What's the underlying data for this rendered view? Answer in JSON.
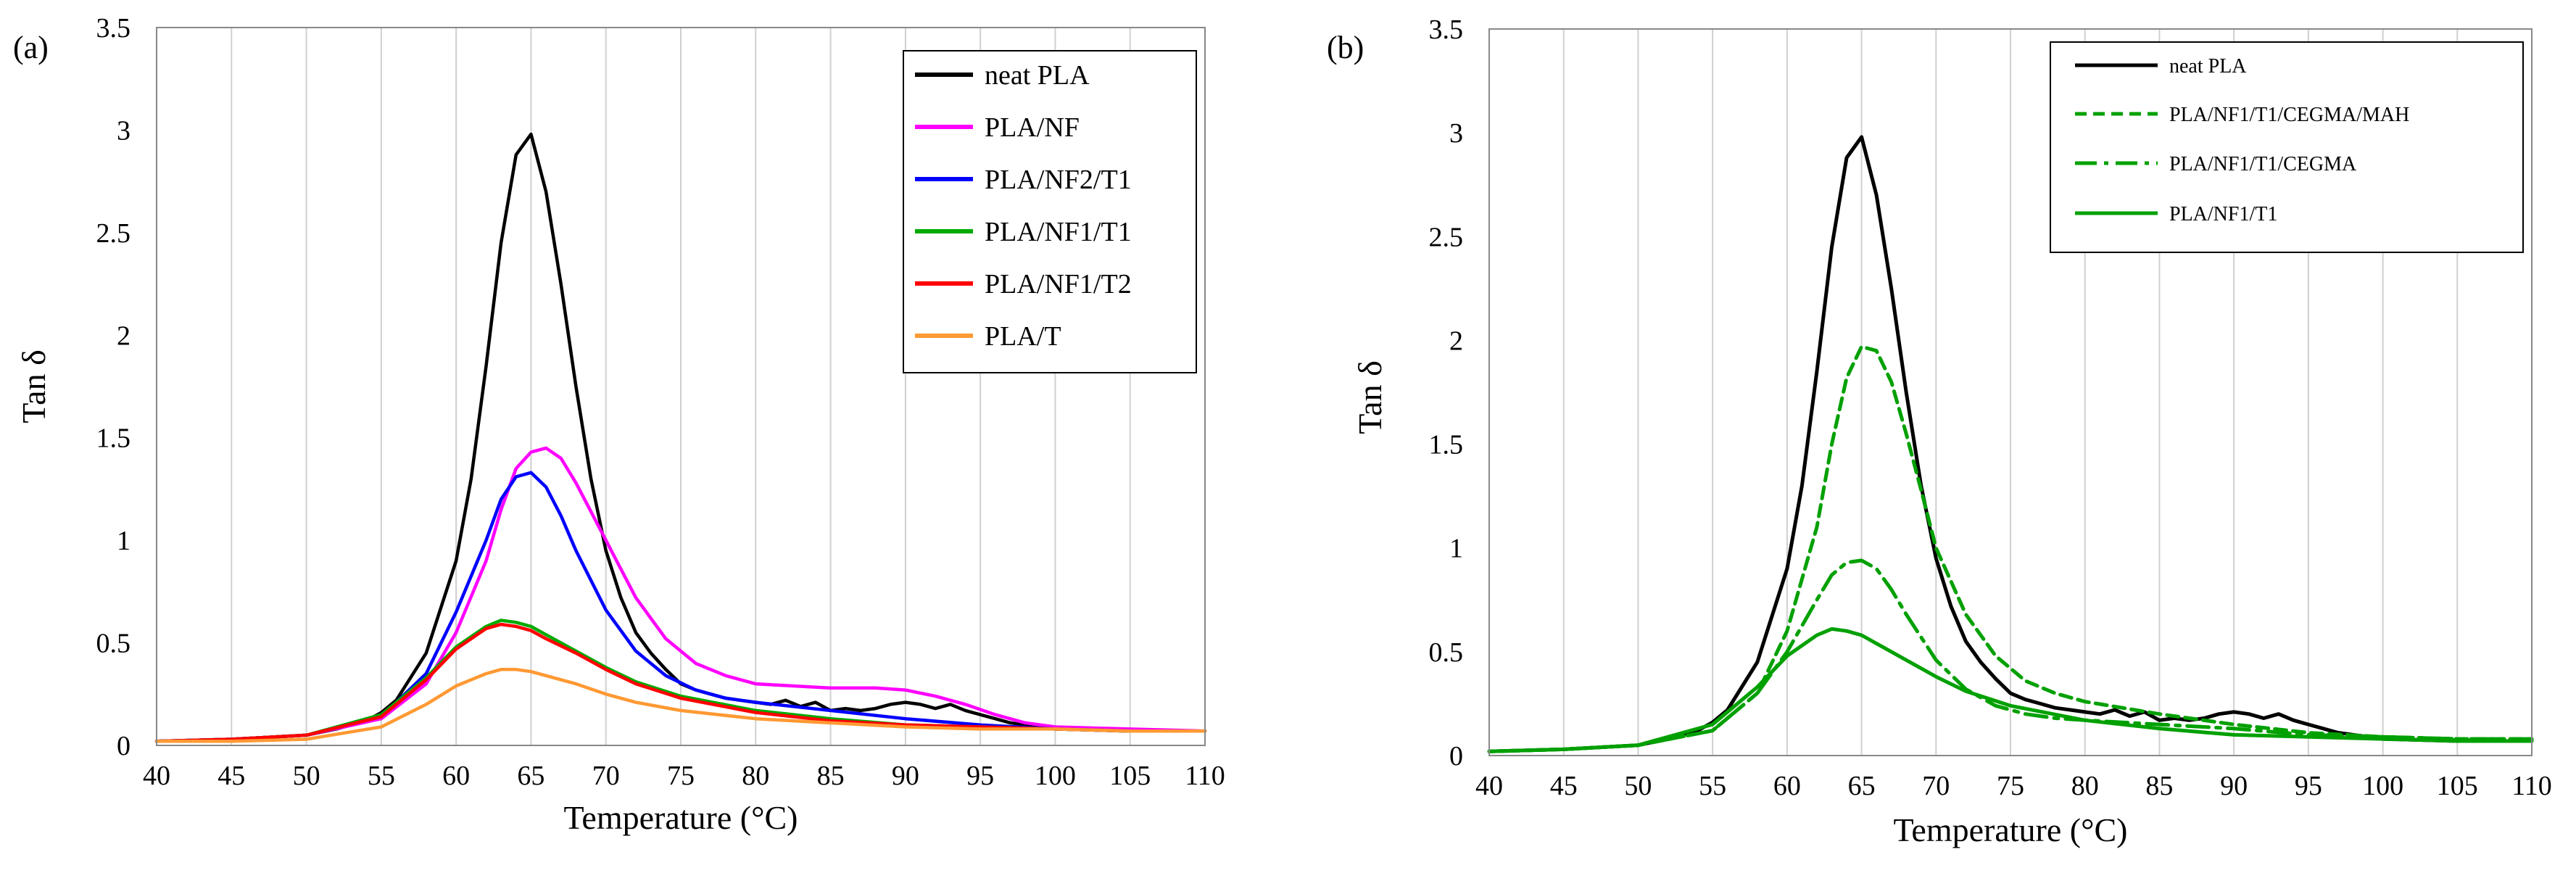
{
  "chart_data": [
    {
      "type": "line",
      "panel_label": "(a)",
      "xlabel": "Temperature (°C)",
      "ylabel": "Tan δ",
      "xlim": [
        40,
        110
      ],
      "ylim": [
        0,
        3.5
      ],
      "xticks": [
        "40",
        "45",
        "50",
        "55",
        "60",
        "65",
        "70",
        "75",
        "80",
        "85",
        "90",
        "95",
        "100",
        "105",
        "110"
      ],
      "yticks": [
        "0",
        "0.5",
        "1",
        "1.5",
        "2",
        "2.5",
        "3",
        "3.5"
      ],
      "grid": "vertical",
      "legend_position": "top-right",
      "series": [
        {
          "name": "neat PLA",
          "color": "#000000",
          "dash": "solid",
          "x": [
            40,
            45,
            50,
            52,
            54,
            55,
            56,
            58,
            60,
            61,
            62,
            63,
            64,
            65,
            66,
            67,
            68,
            69,
            70,
            71,
            72,
            73,
            74,
            75,
            76,
            77,
            78,
            79,
            80,
            81,
            82,
            83,
            84,
            85,
            86,
            87,
            88,
            89,
            90,
            91,
            92,
            93,
            94,
            95,
            96,
            97,
            98,
            99,
            100,
            105,
            110
          ],
          "y": [
            0.02,
            0.03,
            0.05,
            0.08,
            0.12,
            0.16,
            0.22,
            0.45,
            0.9,
            1.3,
            1.85,
            2.45,
            2.88,
            2.98,
            2.7,
            2.25,
            1.75,
            1.3,
            0.95,
            0.72,
            0.55,
            0.45,
            0.37,
            0.3,
            0.27,
            0.25,
            0.23,
            0.22,
            0.21,
            0.2,
            0.22,
            0.19,
            0.21,
            0.17,
            0.18,
            0.17,
            0.18,
            0.2,
            0.21,
            0.2,
            0.18,
            0.2,
            0.17,
            0.15,
            0.13,
            0.11,
            0.1,
            0.09,
            0.08,
            0.07,
            0.07
          ]
        },
        {
          "name": "PLA/NF",
          "color": "#ff00ff",
          "dash": "solid",
          "x": [
            40,
            45,
            50,
            55,
            58,
            60,
            62,
            63,
            64,
            65,
            66,
            67,
            68,
            70,
            72,
            74,
            76,
            78,
            80,
            85,
            88,
            90,
            92,
            94,
            96,
            98,
            100,
            105,
            110
          ],
          "y": [
            0.02,
            0.03,
            0.05,
            0.13,
            0.3,
            0.55,
            0.9,
            1.15,
            1.35,
            1.43,
            1.45,
            1.4,
            1.28,
            1.0,
            0.72,
            0.52,
            0.4,
            0.34,
            0.3,
            0.28,
            0.28,
            0.27,
            0.24,
            0.2,
            0.15,
            0.11,
            0.09,
            0.08,
            0.07
          ]
        },
        {
          "name": "PLA/NF2/T1",
          "color": "#0000ff",
          "dash": "solid",
          "x": [
            40,
            45,
            50,
            55,
            58,
            60,
            62,
            63,
            64,
            65,
            66,
            67,
            68,
            70,
            72,
            74,
            76,
            78,
            80,
            85,
            90,
            95,
            100,
            105,
            110
          ],
          "y": [
            0.02,
            0.03,
            0.05,
            0.14,
            0.35,
            0.65,
            1.0,
            1.2,
            1.31,
            1.33,
            1.26,
            1.12,
            0.95,
            0.66,
            0.46,
            0.34,
            0.27,
            0.23,
            0.21,
            0.17,
            0.13,
            0.1,
            0.08,
            0.07,
            0.07
          ]
        },
        {
          "name": "PLA/NF1/T1",
          "color": "#00aa00",
          "dash": "solid",
          "x": [
            40,
            45,
            50,
            55,
            58,
            60,
            62,
            63,
            64,
            65,
            66,
            68,
            70,
            72,
            75,
            80,
            85,
            90,
            95,
            100,
            105,
            110
          ],
          "y": [
            0.02,
            0.03,
            0.05,
            0.15,
            0.33,
            0.48,
            0.58,
            0.61,
            0.6,
            0.58,
            0.54,
            0.46,
            0.38,
            0.31,
            0.24,
            0.17,
            0.13,
            0.1,
            0.09,
            0.08,
            0.07,
            0.07
          ]
        },
        {
          "name": "PLA/NF1/T2",
          "color": "#ff0000",
          "dash": "solid",
          "x": [
            40,
            45,
            50,
            55,
            58,
            60,
            62,
            63,
            64,
            65,
            66,
            68,
            70,
            72,
            75,
            80,
            85,
            90,
            95,
            100,
            105,
            110
          ],
          "y": [
            0.02,
            0.03,
            0.05,
            0.14,
            0.32,
            0.47,
            0.57,
            0.59,
            0.58,
            0.56,
            0.52,
            0.45,
            0.37,
            0.3,
            0.23,
            0.16,
            0.12,
            0.1,
            0.09,
            0.08,
            0.07,
            0.07
          ]
        },
        {
          "name": "PLA/T",
          "color": "#ff9933",
          "dash": "solid",
          "x": [
            40,
            45,
            50,
            55,
            58,
            60,
            62,
            63,
            64,
            65,
            66,
            68,
            70,
            72,
            75,
            80,
            85,
            90,
            95,
            100,
            105,
            110
          ],
          "y": [
            0.02,
            0.02,
            0.03,
            0.09,
            0.2,
            0.29,
            0.35,
            0.37,
            0.37,
            0.36,
            0.34,
            0.3,
            0.25,
            0.21,
            0.17,
            0.13,
            0.11,
            0.09,
            0.08,
            0.08,
            0.07,
            0.07
          ]
        }
      ]
    },
    {
      "type": "line",
      "panel_label": "(b)",
      "xlabel": "Temperature (°C)",
      "ylabel": "Tan δ",
      "xlim": [
        40,
        110
      ],
      "ylim": [
        0,
        3.5
      ],
      "xticks": [
        "40",
        "45",
        "50",
        "55",
        "60",
        "65",
        "70",
        "75",
        "80",
        "85",
        "90",
        "95",
        "100",
        "105",
        "110"
      ],
      "yticks": [
        "0",
        "0.5",
        "1",
        "1.5",
        "2",
        "2.5",
        "3",
        "3.5"
      ],
      "grid": "vertical",
      "legend_position": "top-right",
      "series": [
        {
          "name": "neat PLA",
          "color": "#000000",
          "dash": "solid",
          "x": [
            40,
            45,
            50,
            52,
            54,
            55,
            56,
            58,
            60,
            61,
            62,
            63,
            64,
            65,
            66,
            67,
            68,
            69,
            70,
            71,
            72,
            73,
            74,
            75,
            76,
            77,
            78,
            79,
            80,
            81,
            82,
            83,
            84,
            85,
            86,
            87,
            88,
            89,
            90,
            91,
            92,
            93,
            94,
            95,
            96,
            97,
            98,
            99,
            100,
            105,
            110
          ],
          "y": [
            0.02,
            0.03,
            0.05,
            0.08,
            0.12,
            0.16,
            0.22,
            0.45,
            0.9,
            1.3,
            1.85,
            2.45,
            2.88,
            2.98,
            2.7,
            2.25,
            1.75,
            1.3,
            0.95,
            0.72,
            0.55,
            0.45,
            0.37,
            0.3,
            0.27,
            0.25,
            0.23,
            0.22,
            0.21,
            0.2,
            0.22,
            0.19,
            0.21,
            0.17,
            0.18,
            0.17,
            0.18,
            0.2,
            0.21,
            0.2,
            0.18,
            0.2,
            0.17,
            0.15,
            0.13,
            0.11,
            0.1,
            0.09,
            0.08,
            0.07,
            0.07
          ]
        },
        {
          "name": "PLA/NF1/T1/CEGMA/MAH",
          "color": "#00a000",
          "dash": "dashed",
          "x": [
            40,
            45,
            50,
            55,
            58,
            60,
            62,
            63,
            64,
            65,
            66,
            67,
            68,
            69,
            70,
            72,
            74,
            76,
            78,
            80,
            85,
            90,
            95,
            100,
            105,
            110
          ],
          "y": [
            0.02,
            0.03,
            0.05,
            0.12,
            0.3,
            0.6,
            1.1,
            1.5,
            1.82,
            1.97,
            1.95,
            1.8,
            1.55,
            1.28,
            1.0,
            0.68,
            0.48,
            0.36,
            0.3,
            0.26,
            0.2,
            0.15,
            0.11,
            0.09,
            0.08,
            0.08
          ]
        },
        {
          "name": "PLA/NF1/T1/CEGMA",
          "color": "#00a000",
          "dash": "dashdot",
          "x": [
            40,
            45,
            50,
            55,
            58,
            60,
            62,
            63,
            64,
            65,
            66,
            67,
            68,
            70,
            72,
            74,
            76,
            78,
            80,
            85,
            90,
            95,
            100,
            105,
            110
          ],
          "y": [
            0.02,
            0.03,
            0.05,
            0.12,
            0.3,
            0.5,
            0.75,
            0.87,
            0.93,
            0.94,
            0.9,
            0.8,
            0.68,
            0.46,
            0.32,
            0.24,
            0.2,
            0.18,
            0.17,
            0.15,
            0.13,
            0.1,
            0.09,
            0.08,
            0.08
          ]
        },
        {
          "name": "PLA/NF1/T1",
          "color": "#00a000",
          "dash": "solid",
          "x": [
            40,
            45,
            50,
            55,
            58,
            60,
            62,
            63,
            64,
            65,
            66,
            68,
            70,
            72,
            75,
            80,
            85,
            90,
            95,
            100,
            105,
            110
          ],
          "y": [
            0.02,
            0.03,
            0.05,
            0.15,
            0.33,
            0.48,
            0.58,
            0.61,
            0.6,
            0.58,
            0.54,
            0.46,
            0.38,
            0.31,
            0.24,
            0.17,
            0.13,
            0.1,
            0.09,
            0.08,
            0.07,
            0.07
          ]
        }
      ]
    }
  ]
}
